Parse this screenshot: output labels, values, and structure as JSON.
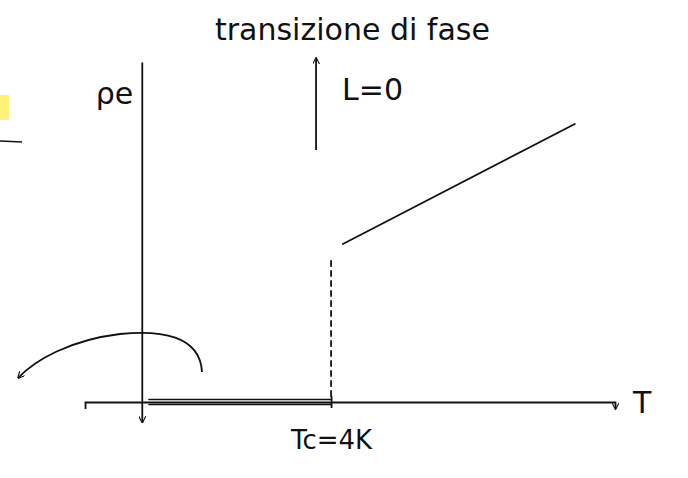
{
  "chart_data": {
    "type": "line",
    "title": "transizione di fase",
    "annotations": [
      {
        "text": "L=0"
      }
    ],
    "x_label": "T",
    "y_label": "ρe",
    "xlim": [
      -1.2,
      10
    ],
    "ylim": [
      -0.2,
      3.4
    ],
    "xticks": [
      {
        "value": 4,
        "label": "Tc=4K"
      }
    ],
    "yticks": [],
    "tick_labels": "x",
    "grid": false,
    "series": [
      {
        "x": [
          0.15,
          4.0
        ],
        "values": [
          0,
          0
        ],
        "color": "#111111",
        "line_style": "double"
      },
      {
        "x": [
          4.0,
          4.0
        ],
        "values": [
          0.06,
          1.45
        ],
        "color": "#111111",
        "line_style": "dashed"
      },
      {
        "x": [
          4.25,
          9.15
        ],
        "values": [
          1.58,
          2.78
        ],
        "color": "#111111",
        "line_style": "solid"
      }
    ]
  }
}
